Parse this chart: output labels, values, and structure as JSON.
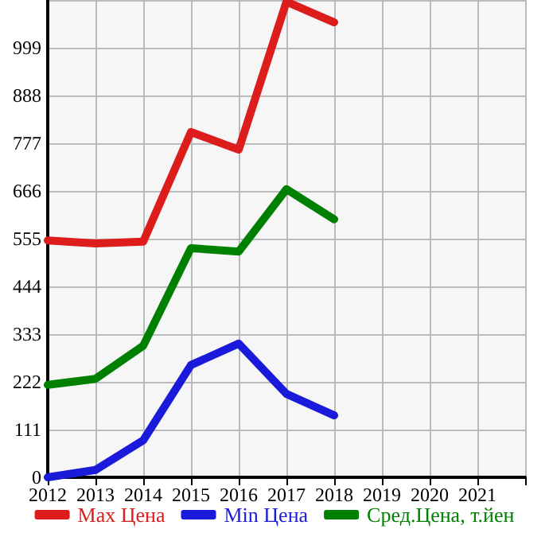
{
  "chart_data": {
    "type": "line",
    "x": [
      2012,
      2013,
      2014,
      2015,
      2016,
      2017,
      2018
    ],
    "series": [
      {
        "name": "Max Цена",
        "color": "#dd1c1c",
        "values": [
          551,
          544,
          548,
          803,
          762,
          1106,
          1058
        ]
      },
      {
        "name": "Min Цена",
        "color": "#1a1adb",
        "values": [
          0,
          17,
          86,
          261,
          311,
          194,
          144
        ]
      },
      {
        "name": "Сред.Цена, т.йен",
        "color": "#008000",
        "values": [
          215,
          229,
          306,
          533,
          525,
          670,
          600
        ]
      }
    ],
    "xlim": [
      2012,
      2022
    ],
    "xticks": [
      2012,
      2013,
      2014,
      2015,
      2016,
      2017,
      2018,
      2019,
      2020,
      2021,
      {
        "value": 2022,
        "label": null
      }
    ],
    "ylim": [
      0,
      1110
    ],
    "yticks": [
      0,
      111,
      222,
      333,
      444,
      555,
      666,
      777,
      888,
      999,
      {
        "value": 1110,
        "label": null
      }
    ],
    "grid": true,
    "legend": "bottom",
    "marker": "none",
    "line_style": "solid"
  }
}
